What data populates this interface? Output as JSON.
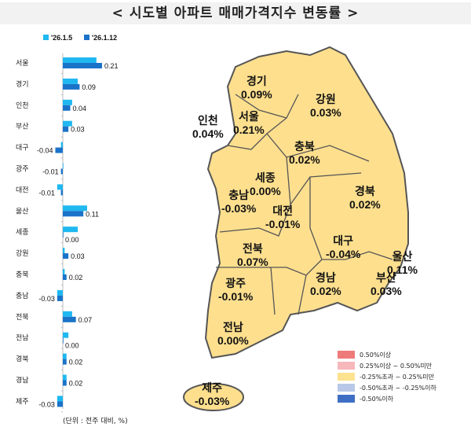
{
  "title": "< 시도별 아파트 매매가격지수 변동률 >",
  "chart_data": {
    "type": "bar",
    "orientation": "horizontal",
    "categories": [
      "서울",
      "경기",
      "인천",
      "부산",
      "대구",
      "광주",
      "대전",
      "울산",
      "세종",
      "강원",
      "충북",
      "충남",
      "전북",
      "전남",
      "경북",
      "경남",
      "제주"
    ],
    "series": [
      {
        "name": "'26.1.5",
        "color": "#1fb8f0",
        "values": [
          0.18,
          0.08,
          0.05,
          0.05,
          -0.01,
          0.0,
          -0.03,
          0.13,
          0.08,
          0.01,
          0.01,
          -0.03,
          0.05,
          0.03,
          0.02,
          0.02,
          -0.03
        ]
      },
      {
        "name": "'26.1.12",
        "color": "#1a73c9",
        "values": [
          0.21,
          0.09,
          0.04,
          0.03,
          -0.04,
          -0.01,
          -0.01,
          0.11,
          0.0,
          0.03,
          0.02,
          -0.03,
          0.07,
          0.0,
          0.02,
          0.02,
          -0.03
        ]
      }
    ],
    "data_labels": [
      "0.21",
      "0.09",
      "0.04",
      "0.03",
      "-0.04",
      "-0.01",
      "-0.01",
      "0.11",
      "0.00",
      "0.03",
      "0.02",
      "-0.03",
      "0.07",
      "0.00",
      "0.02",
      "0.02",
      "-0.03"
    ],
    "legend_position": "top"
  },
  "unit": "(단위 : 전주 대비, %)",
  "map": {
    "fill": "#fddf8e",
    "regions": [
      {
        "name": "경기",
        "value": "0.09%"
      },
      {
        "name": "강원",
        "value": "0.03%"
      },
      {
        "name": "인천",
        "value": "0.04%"
      },
      {
        "name": "서울",
        "value": "0.21%"
      },
      {
        "name": "충북",
        "value": "0.02%"
      },
      {
        "name": "세종",
        "value": "0.00%"
      },
      {
        "name": "경북",
        "value": "0.02%"
      },
      {
        "name": "충남",
        "value": "-0.03%"
      },
      {
        "name": "대전",
        "value": "-0.01%"
      },
      {
        "name": "전북",
        "value": "0.07%"
      },
      {
        "name": "대구",
        "value": "-0.04%"
      },
      {
        "name": "울산",
        "value": "0.11%"
      },
      {
        "name": "광주",
        "value": "-0.01%"
      },
      {
        "name": "경남",
        "value": "0.02%"
      },
      {
        "name": "부산",
        "value": "0.03%"
      },
      {
        "name": "전남",
        "value": "0.00%"
      },
      {
        "name": "제주",
        "value": "-0.03%"
      }
    ]
  },
  "legend": [
    {
      "label": "0.50%이상",
      "color": "#ef7a7a"
    },
    {
      "label": "0.25%이상 ~ 0.50%미만",
      "color": "#f6b8bb"
    },
    {
      "label": "-0.25%초과 ~ 0.25%미만",
      "color": "#fde28f"
    },
    {
      "label": "-0.50%초과 ~ -0.25%이하",
      "color": "#b9c8e8"
    },
    {
      "label": "-0.50%이하",
      "color": "#3f6fc4"
    }
  ]
}
